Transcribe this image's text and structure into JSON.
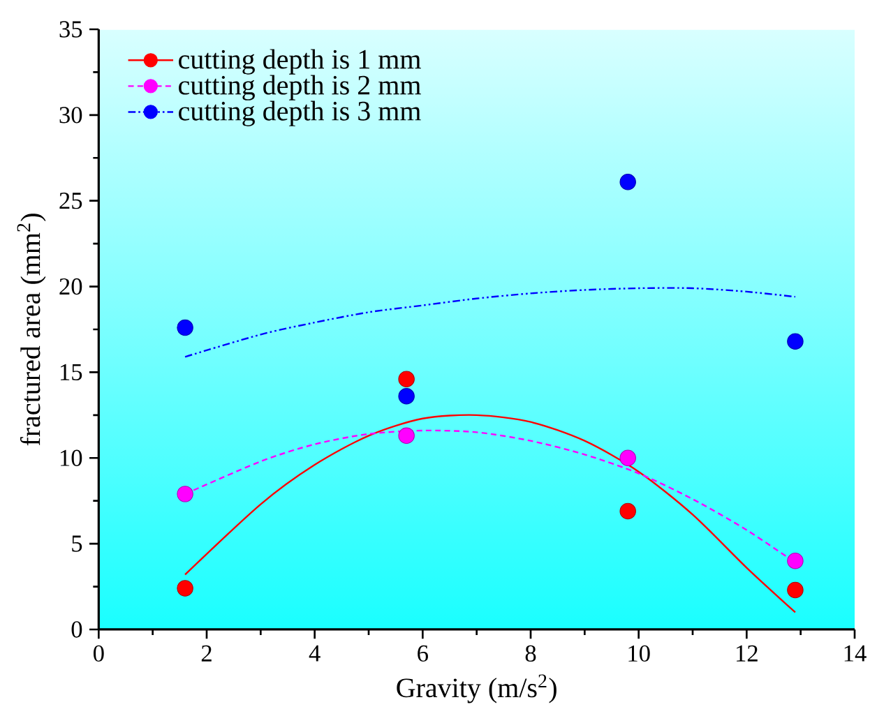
{
  "chart_data": {
    "type": "scatter",
    "xlabel": "Gravity (m/s$^{2}$)",
    "ylabel": "fractured area (mm$^{2}$)",
    "xlim": [
      0,
      14
    ],
    "ylim": [
      0,
      35
    ],
    "xticks": [
      0,
      2,
      4,
      6,
      8,
      10,
      12,
      14
    ],
    "yticks": [
      0,
      5,
      10,
      15,
      20,
      25,
      30,
      35
    ],
    "legend": "top left",
    "series": [
      {
        "name": "cutting depth is 1 mm",
        "color": "#ff0000",
        "marker": "circle",
        "x": [
          1.6,
          5.7,
          9.8,
          12.9
        ],
        "values": [
          2.4,
          14.6,
          6.9,
          2.3
        ]
      },
      {
        "name": "cutting depth is 2 mm",
        "color": "#ff00ff",
        "marker": "circle",
        "x": [
          1.6,
          5.7,
          9.8,
          12.9
        ],
        "values": [
          7.9,
          11.3,
          10.0,
          4.0
        ]
      },
      {
        "name": "cutting depth is 3 mm",
        "color": "#0000ff",
        "marker": "circle",
        "x": [
          1.6,
          5.7,
          9.8,
          12.9
        ],
        "values": [
          17.6,
          13.6,
          26.1,
          16.8
        ]
      },
      {
        "type": "line",
        "line_style": "solid",
        "marker": "none",
        "color": "#ff0000",
        "x": [
          1.6,
          3,
          4,
          5,
          6,
          7,
          8,
          9,
          10,
          11,
          12,
          12.9
        ],
        "values": [
          3.2,
          7.3,
          9.6,
          11.3,
          12.3,
          12.5,
          12.1,
          11.0,
          9.2,
          6.7,
          3.6,
          1.0
        ]
      },
      {
        "type": "line",
        "line_style": "dashed",
        "marker": "none",
        "color": "#ff00ff",
        "x": [
          1.6,
          3,
          4,
          5,
          6,
          7,
          8,
          9,
          10,
          11,
          12,
          12.9
        ],
        "values": [
          7.9,
          9.8,
          10.8,
          11.4,
          11.6,
          11.5,
          11.0,
          10.2,
          9.1,
          7.6,
          5.8,
          3.9
        ]
      },
      {
        "type": "line",
        "line_style": "dashdotdot",
        "marker": "none",
        "color": "#0000ff",
        "x": [
          1.6,
          3,
          4,
          5,
          6,
          7,
          8,
          9,
          10,
          11,
          12,
          12.9
        ],
        "values": [
          15.9,
          17.2,
          17.9,
          18.5,
          18.9,
          19.3,
          19.6,
          19.8,
          19.9,
          19.9,
          19.7,
          19.4
        ]
      }
    ]
  }
}
